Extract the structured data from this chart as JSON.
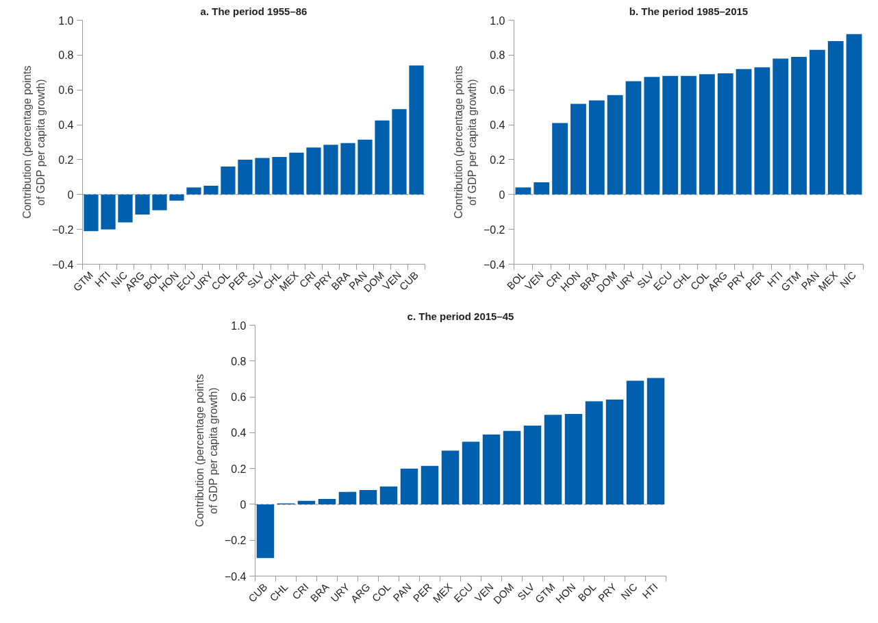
{
  "chart_data": [
    {
      "type": "bar",
      "title": "a. The period 1955–86",
      "ylabel": "Contribution (percentage points\nof GDP per capita growth)",
      "categories": [
        "GTM",
        "HTI",
        "NIC",
        "ARG",
        "BOL",
        "HON",
        "ECU",
        "URY",
        "COL",
        "PER",
        "SLV",
        "CHL",
        "MEX",
        "CRI",
        "PRY",
        "BRA",
        "PAN",
        "DOM",
        "VEN",
        "CUB"
      ],
      "values": [
        -0.21,
        -0.2,
        -0.16,
        -0.115,
        -0.09,
        -0.035,
        0.04,
        0.05,
        0.16,
        0.2,
        0.21,
        0.215,
        0.24,
        0.27,
        0.285,
        0.295,
        0.315,
        0.425,
        0.49,
        0.74
      ],
      "color": "#0060ad",
      "ylim": [
        -0.4,
        1.0
      ],
      "yticks": [
        {
          "value": -0.4,
          "label": "−0.4"
        },
        {
          "value": -0.2,
          "label": "−0.2"
        },
        0,
        0.2,
        0.4,
        0.6,
        0.8,
        {
          "value": 1.0,
          "label": "1.0"
        }
      ],
      "ref_lines": [
        {
          "axis": "y",
          "value": 0,
          "color": "#aaaaaa",
          "line_style": "dashed"
        }
      ],
      "grid": false
    },
    {
      "type": "bar",
      "title": "b. The period 1985–2015",
      "ylabel": "Contribution (percentage points\nof GDP per capita growth)",
      "categories": [
        "BOL",
        "VEN",
        "CRI",
        "HON",
        "BRA",
        "DOM",
        "URY",
        "SLV",
        "ECU",
        "CHL",
        "COL",
        "ARG",
        "PRY",
        "PER",
        "HTI",
        "GTM",
        "PAN",
        "MEX",
        "NIC"
      ],
      "values": [
        0.04,
        0.07,
        0.41,
        0.52,
        0.54,
        0.57,
        0.65,
        0.675,
        0.68,
        0.68,
        0.69,
        0.695,
        0.72,
        0.73,
        0.78,
        0.79,
        0.83,
        0.88,
        0.92
      ],
      "color": "#0060ad",
      "ylim": [
        -0.4,
        1.0
      ],
      "yticks": [
        {
          "value": -0.4,
          "label": "−0.4"
        },
        {
          "value": -0.2,
          "label": "−0.2"
        },
        0,
        0.2,
        0.4,
        0.6,
        0.8,
        {
          "value": 1.0,
          "label": "1.0"
        }
      ],
      "ref_lines": [
        {
          "axis": "y",
          "value": 0,
          "color": "#aaaaaa",
          "line_style": "dashed"
        }
      ],
      "grid": false
    },
    {
      "type": "bar",
      "title": "c. The period 2015–45",
      "ylabel": "Contribution (percentage points\nof GDP per capita growth)",
      "categories": [
        "CUB",
        "CHL",
        "CRI",
        "BRA",
        "URY",
        "ARG",
        "COL",
        "PAN",
        "PER",
        "MEX",
        "ECU",
        "VEN",
        "DOM",
        "SLV",
        "GTM",
        "HON",
        "BOL",
        "PRY",
        "NIC",
        "HTI"
      ],
      "values": [
        -0.3,
        0.005,
        0.02,
        0.03,
        0.07,
        0.08,
        0.1,
        0.2,
        0.215,
        0.3,
        0.35,
        0.39,
        0.41,
        0.44,
        0.5,
        0.505,
        0.575,
        0.585,
        0.69,
        0.705
      ],
      "color": "#0060ad",
      "ylim": [
        -0.4,
        1.0
      ],
      "yticks": [
        {
          "value": -0.4,
          "label": "−0.4"
        },
        {
          "value": -0.2,
          "label": "−0.2"
        },
        0,
        0.2,
        0.4,
        0.6,
        0.8,
        {
          "value": 1.0,
          "label": "1.0"
        }
      ],
      "ref_lines": [
        {
          "axis": "y",
          "value": 0,
          "color": "#aaaaaa",
          "line_style": "dashed"
        }
      ],
      "grid": false
    }
  ]
}
